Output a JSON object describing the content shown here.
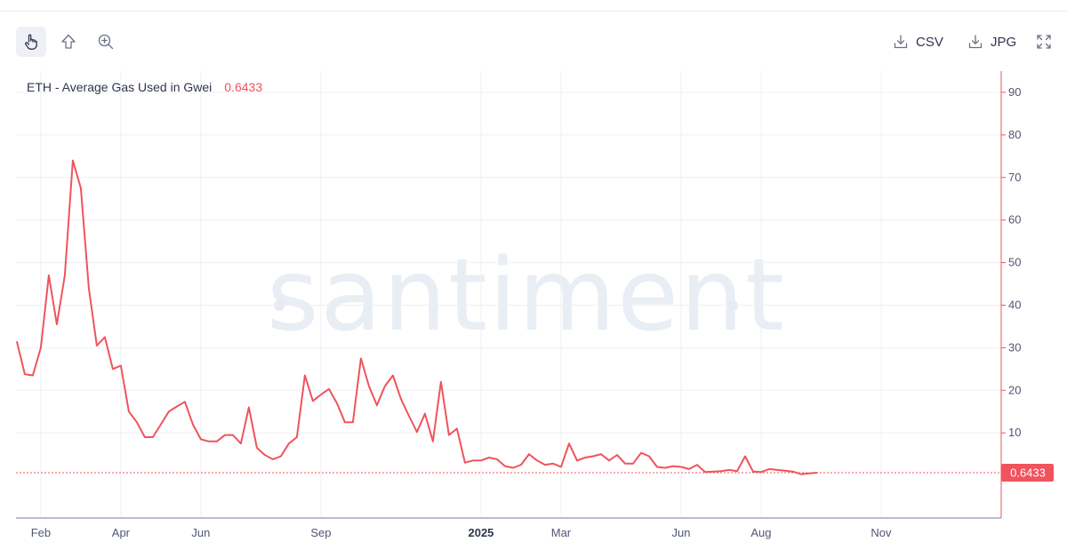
{
  "toolbar": {
    "tools": [
      {
        "name": "pointer-tool",
        "icon": "hand-pointer-icon",
        "active": true
      },
      {
        "name": "arrow-tool",
        "icon": "arrow-up-icon",
        "active": false
      },
      {
        "name": "zoom-tool",
        "icon": "zoom-in-icon",
        "active": false
      }
    ],
    "csv_label": "CSV",
    "jpg_label": "JPG",
    "expand_icon": "expand-icon"
  },
  "legend": {
    "metric": "ETH - Average Gas Used in Gwei",
    "value": "0.6433"
  },
  "watermark": "santiment",
  "colors": {
    "line": "#f0535d",
    "grid": "#eef0f4",
    "axis": "#6e7bab",
    "watermark": "#e6eaf3"
  },
  "chart_data": {
    "type": "line",
    "title": "",
    "xlabel": "",
    "ylabel": "",
    "ylim": [
      -10,
      95
    ],
    "y_ticks": [
      10,
      20,
      30,
      40,
      50,
      60,
      70,
      80,
      90
    ],
    "x_ticks": [
      {
        "label": "Feb",
        "t": 1.0,
        "bold": false
      },
      {
        "label": "Apr",
        "t": 3.0,
        "bold": false
      },
      {
        "label": "Jun",
        "t": 5.0,
        "bold": false
      },
      {
        "label": "Sep",
        "t": 8.0,
        "bold": false
      },
      {
        "label": "2025",
        "t": 12.0,
        "bold": true
      },
      {
        "label": "Mar",
        "t": 14.0,
        "bold": false
      },
      {
        "label": "Jun",
        "t": 17.0,
        "bold": false
      },
      {
        "label": "Aug",
        "t": 19.0,
        "bold": false
      },
      {
        "label": "Nov",
        "t": 22.0,
        "bold": false
      }
    ],
    "x_range": [
      0.38,
      25.0
    ],
    "last_value_label": "0.6433",
    "series": [
      {
        "name": "ETH - Average Gas Used in Gwei",
        "color": "#f0535d",
        "points": [
          [
            0.4,
            31.5
          ],
          [
            0.6,
            23.8
          ],
          [
            0.8,
            23.5
          ],
          [
            1.0,
            30.0
          ],
          [
            1.2,
            47.0
          ],
          [
            1.4,
            35.5
          ],
          [
            1.6,
            47.0
          ],
          [
            1.8,
            74.0
          ],
          [
            2.0,
            67.5
          ],
          [
            2.2,
            44.0
          ],
          [
            2.4,
            30.5
          ],
          [
            2.6,
            32.5
          ],
          [
            2.8,
            25.0
          ],
          [
            3.0,
            25.8
          ],
          [
            3.2,
            15.0
          ],
          [
            3.4,
            12.5
          ],
          [
            3.6,
            9.0
          ],
          [
            3.8,
            9.0
          ],
          [
            4.0,
            12.0
          ],
          [
            4.2,
            15.0
          ],
          [
            4.4,
            16.2
          ],
          [
            4.6,
            17.3
          ],
          [
            4.8,
            12.0
          ],
          [
            5.0,
            8.5
          ],
          [
            5.2,
            8.0
          ],
          [
            5.4,
            8.0
          ],
          [
            5.6,
            9.5
          ],
          [
            5.8,
            9.5
          ],
          [
            6.0,
            7.5
          ],
          [
            6.2,
            16.0
          ],
          [
            6.4,
            6.5
          ],
          [
            6.6,
            4.8
          ],
          [
            6.8,
            3.8
          ],
          [
            7.0,
            4.5
          ],
          [
            7.2,
            7.5
          ],
          [
            7.4,
            9.0
          ],
          [
            7.6,
            23.5
          ],
          [
            7.8,
            17.5
          ],
          [
            8.0,
            19.0
          ],
          [
            8.2,
            20.3
          ],
          [
            8.4,
            17.0
          ],
          [
            8.6,
            12.5
          ],
          [
            8.8,
            12.5
          ],
          [
            9.0,
            27.5
          ],
          [
            9.2,
            21.0
          ],
          [
            9.4,
            16.5
          ],
          [
            9.6,
            21.0
          ],
          [
            9.8,
            23.5
          ],
          [
            10.0,
            18.0
          ],
          [
            10.2,
            14.0
          ],
          [
            10.4,
            10.2
          ],
          [
            10.6,
            14.5
          ],
          [
            10.8,
            8.0
          ],
          [
            11.0,
            22.0
          ],
          [
            11.2,
            9.5
          ],
          [
            11.4,
            11.0
          ],
          [
            11.6,
            3.0
          ],
          [
            11.8,
            3.5
          ],
          [
            12.0,
            3.5
          ],
          [
            12.2,
            4.2
          ],
          [
            12.4,
            3.8
          ],
          [
            12.6,
            2.2
          ],
          [
            12.8,
            1.8
          ],
          [
            13.0,
            2.5
          ],
          [
            13.2,
            5.0
          ],
          [
            13.4,
            3.5
          ],
          [
            13.6,
            2.5
          ],
          [
            13.8,
            2.8
          ],
          [
            14.0,
            2.0
          ],
          [
            14.2,
            7.5
          ],
          [
            14.4,
            3.5
          ],
          [
            14.6,
            4.2
          ],
          [
            14.8,
            4.5
          ],
          [
            15.0,
            5.0
          ],
          [
            15.2,
            3.5
          ],
          [
            15.4,
            4.8
          ],
          [
            15.6,
            2.8
          ],
          [
            15.8,
            2.8
          ],
          [
            16.0,
            5.3
          ],
          [
            16.2,
            4.5
          ],
          [
            16.4,
            2.0
          ],
          [
            16.6,
            1.8
          ],
          [
            16.8,
            2.2
          ],
          [
            17.0,
            2.0
          ],
          [
            17.2,
            1.5
          ],
          [
            17.4,
            2.5
          ],
          [
            17.6,
            0.8
          ],
          [
            17.8,
            0.9
          ],
          [
            18.0,
            1.0
          ],
          [
            18.2,
            1.3
          ],
          [
            18.4,
            1.0
          ],
          [
            18.6,
            4.5
          ],
          [
            18.8,
            0.9
          ],
          [
            19.0,
            0.8
          ],
          [
            19.2,
            1.5
          ],
          [
            19.4,
            1.3
          ],
          [
            19.6,
            1.1
          ],
          [
            19.8,
            0.9
          ],
          [
            20.0,
            0.3
          ],
          [
            20.2,
            0.5
          ],
          [
            20.4,
            0.6433
          ]
        ]
      }
    ]
  }
}
